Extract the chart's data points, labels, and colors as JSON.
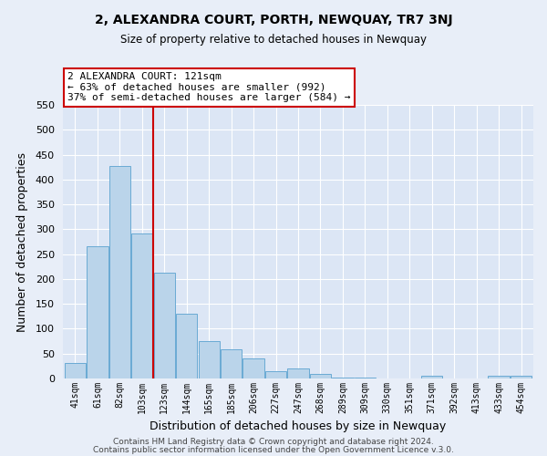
{
  "title": "2, ALEXANDRA COURT, PORTH, NEWQUAY, TR7 3NJ",
  "subtitle": "Size of property relative to detached houses in Newquay",
  "xlabel": "Distribution of detached houses by size in Newquay",
  "ylabel": "Number of detached properties",
  "bar_labels": [
    "41sqm",
    "61sqm",
    "82sqm",
    "103sqm",
    "123sqm",
    "144sqm",
    "165sqm",
    "185sqm",
    "206sqm",
    "227sqm",
    "247sqm",
    "268sqm",
    "289sqm",
    "309sqm",
    "330sqm",
    "351sqm",
    "371sqm",
    "392sqm",
    "413sqm",
    "433sqm",
    "454sqm"
  ],
  "bar_values": [
    32,
    265,
    427,
    292,
    213,
    130,
    76,
    59,
    40,
    15,
    20,
    9,
    2,
    1,
    0,
    0,
    5,
    0,
    0,
    5,
    5
  ],
  "bar_color": "#bad4ea",
  "bar_edge_color": "#6aaad4",
  "vline_position": 3.5,
  "vline_color": "#cc0000",
  "ylim": [
    0,
    550
  ],
  "yticks": [
    0,
    50,
    100,
    150,
    200,
    250,
    300,
    350,
    400,
    450,
    500,
    550
  ],
  "annotation_title": "2 ALEXANDRA COURT: 121sqm",
  "annotation_line1": "← 63% of detached houses are smaller (992)",
  "annotation_line2": "37% of semi-detached houses are larger (584) →",
  "annotation_box_color": "#ffffff",
  "annotation_box_edge": "#cc0000",
  "footer1": "Contains HM Land Registry data © Crown copyright and database right 2024.",
  "footer2": "Contains public sector information licensed under the Open Government Licence v.3.0.",
  "bg_color": "#e8eef8",
  "plot_bg_color": "#dce6f5"
}
